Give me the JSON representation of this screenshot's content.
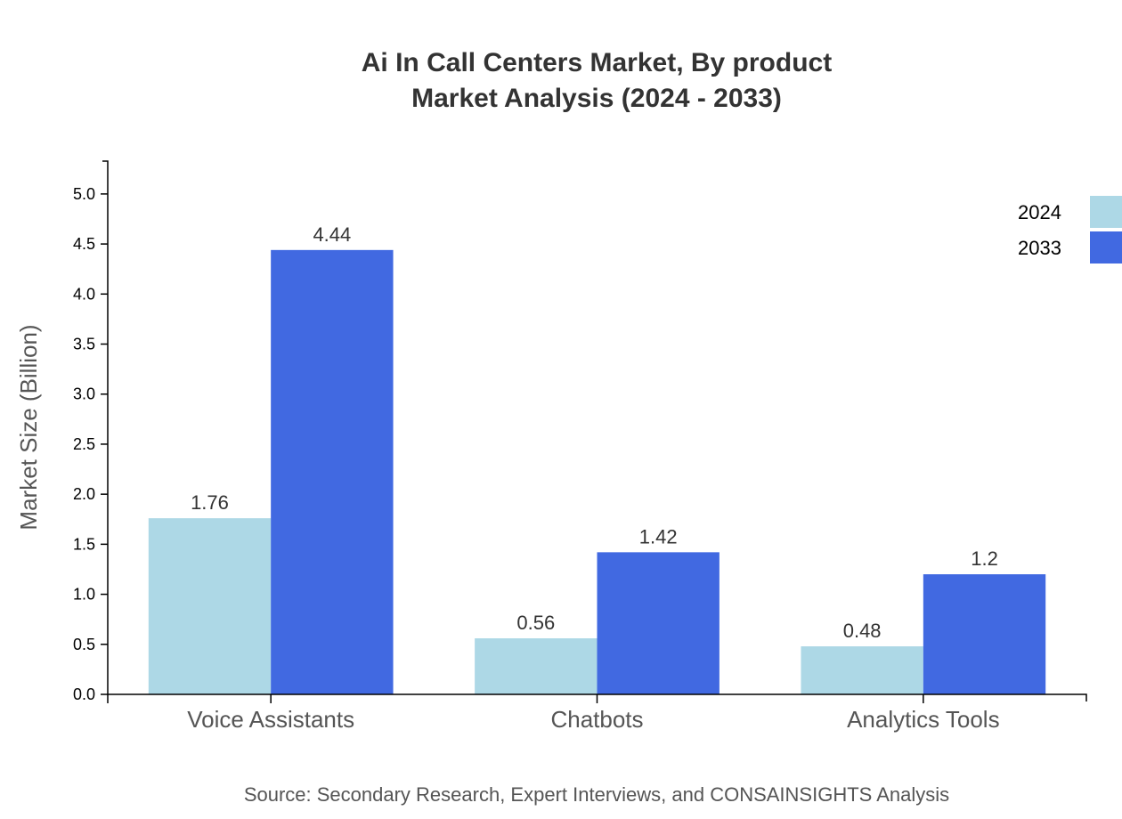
{
  "chart_data": {
    "type": "bar",
    "title": "Ai In Call Centers Market, By product",
    "subtitle": "Market Analysis (2024 - 2033)",
    "xlabel": "",
    "ylabel": "Market Size (Billion)",
    "categories": [
      "Voice Assistants",
      "Chatbots",
      "Analytics Tools"
    ],
    "series": [
      {
        "name": "2024",
        "values": [
          1.76,
          0.56,
          0.48
        ],
        "color": "#ADD8E6"
      },
      {
        "name": "2033",
        "values": [
          4.44,
          1.42,
          1.2
        ],
        "color": "#4169E1"
      }
    ],
    "ylim": [
      0,
      5.328
    ],
    "yticks": [
      "0.0",
      "0.5",
      "1.0",
      "1.5",
      "2.0",
      "2.5",
      "3.0",
      "3.5",
      "4.0",
      "4.5",
      "5.0"
    ],
    "grid": false,
    "legend": "top-right",
    "source": "Source: Secondary Research, Expert Interviews, and CONSAINSIGHTS Analysis"
  }
}
